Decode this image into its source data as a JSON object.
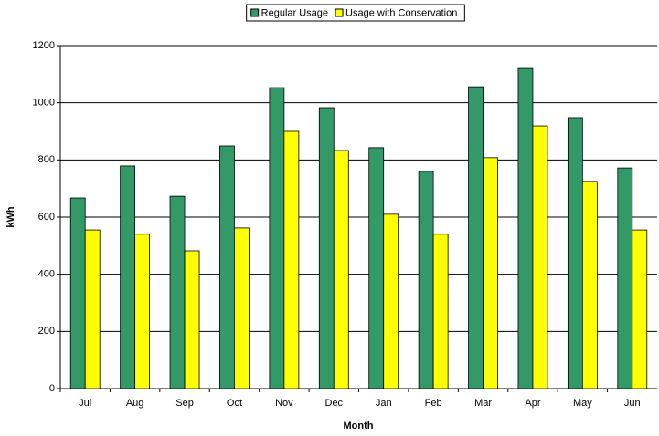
{
  "chart_data": {
    "type": "bar",
    "categories": [
      "Jul",
      "Aug",
      "Sep",
      "Oct",
      "Nov",
      "Dec",
      "Jan",
      "Feb",
      "Mar",
      "Apr",
      "May",
      "Jun"
    ],
    "series": [
      {
        "name": "Regular Usage",
        "color": "#339966",
        "values": [
          667,
          779,
          673,
          849,
          1053,
          983,
          843,
          760,
          1056,
          1120,
          948,
          772
        ]
      },
      {
        "name": "Usage with Conservation",
        "color": "#ffff00",
        "values": [
          555,
          540,
          482,
          562,
          900,
          833,
          610,
          540,
          808,
          919,
          725,
          555
        ]
      }
    ],
    "xlabel": "Month",
    "ylabel": "kWh",
    "ylim": [
      0,
      1200
    ],
    "yticks": [
      0,
      200,
      400,
      600,
      800,
      1000,
      1200
    ],
    "grid": true,
    "legend": "top"
  }
}
